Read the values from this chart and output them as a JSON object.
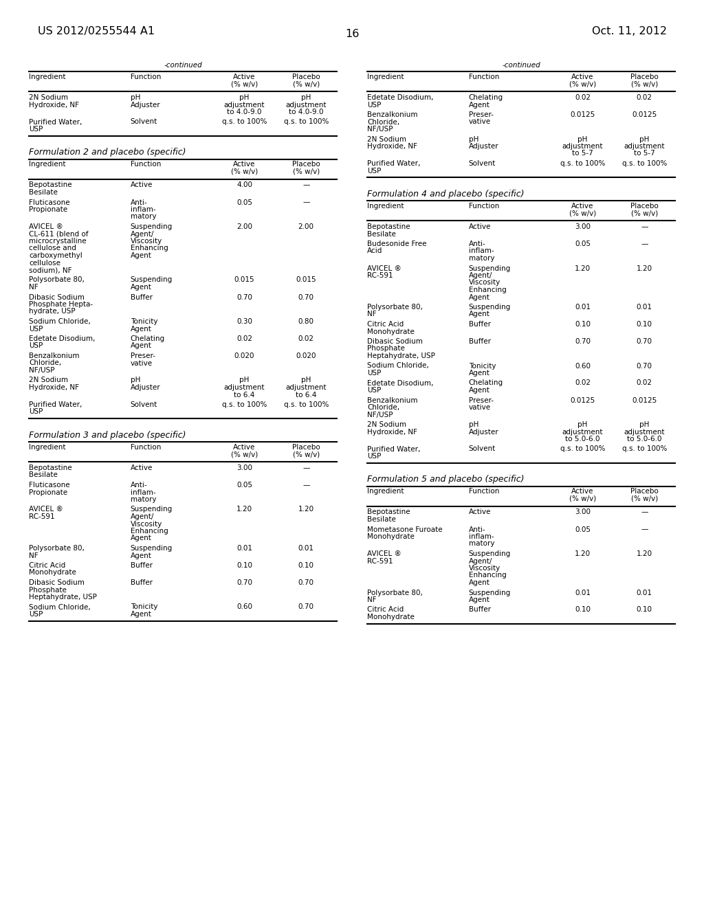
{
  "bg_color": "#ffffff",
  "header_left": "US 2012/0255544 A1",
  "header_right": "Oct. 11, 2012",
  "page_number": "16",
  "left_cont_rows": [
    [
      "2N Sodium\nHydroxide, NF",
      "pH\nAdjuster",
      "pH\nadjustment\nto 4.0-9.0",
      "pH\nadjustment\nto 4.0-9.0"
    ],
    [
      "Purified Water,\nUSP",
      "Solvent",
      "q.s. to 100%",
      "q.s. to 100%"
    ]
  ],
  "form2_rows": [
    [
      "Bepotastine\nBesilate",
      "Active",
      "4.00",
      "—"
    ],
    [
      "Fluticasone\nPropionate",
      "Anti-\ninflam-\nmatory",
      "0.05",
      "—"
    ],
    [
      "AVICEL ®\nCL-611 (blend of\nmicrocrystalline\ncellulose and\ncarboxymethyl\ncellulose\nsodium), NF",
      "Suspending\nAgent/\nViscosity\nEnhancing\nAgent",
      "2.00",
      "2.00"
    ],
    [
      "Polysorbate 80,\nNF",
      "Suspending\nAgent",
      "0.015",
      "0.015"
    ],
    [
      "Dibasic Sodium\nPhosphate Hepta-\nhydrate, USP",
      "Buffer",
      "0.70",
      "0.70"
    ],
    [
      "Sodium Chloride,\nUSP",
      "Tonicity\nAgent",
      "0.30",
      "0.80"
    ],
    [
      "Edetate Disodium,\nUSP",
      "Chelating\nAgent",
      "0.02",
      "0.02"
    ],
    [
      "Benzalkonium\nChloride,\nNF/USP",
      "Preser-\nvative",
      "0.020",
      "0.020"
    ],
    [
      "2N Sodium\nHydroxide, NF",
      "pH\nAdjuster",
      "pH\nadjustment\nto 6.4",
      "pH\nadjustment\nto 6.4"
    ],
    [
      "Purified Water,\nUSP",
      "Solvent",
      "q.s. to 100%",
      "q.s. to 100%"
    ]
  ],
  "form3_rows": [
    [
      "Bepotastine\nBesilate",
      "Active",
      "3.00",
      "—"
    ],
    [
      "Fluticasone\nPropionate",
      "Anti-\ninflam-\nmatory",
      "0.05",
      "—"
    ],
    [
      "AVICEL ®\nRC-591",
      "Suspending\nAgent/\nViscosity\nEnhancing\nAgent",
      "1.20",
      "1.20"
    ],
    [
      "Polysorbate 80,\nNF",
      "Suspending\nAgent",
      "0.01",
      "0.01"
    ],
    [
      "Citric Acid\nMonohydrate",
      "Buffer",
      "0.10",
      "0.10"
    ],
    [
      "Dibasic Sodium\nPhosphate\nHeptahydrate, USP",
      "Buffer",
      "0.70",
      "0.70"
    ],
    [
      "Sodium Chloride,\nUSP",
      "Tonicity\nAgent",
      "0.60",
      "0.70"
    ]
  ],
  "right_cont_rows": [
    [
      "Edetate Disodium,\nUSP",
      "Chelating\nAgent",
      "0.02",
      "0.02"
    ],
    [
      "Benzalkonium\nChloride,\nNF/USP",
      "Preser-\nvative",
      "0.0125",
      "0.0125"
    ],
    [
      "2N Sodium\nHydroxide, NF",
      "pH\nAdjuster",
      "pH\nadjustment\nto 5-7",
      "pH\nadjustment\nto 5-7"
    ],
    [
      "Purified Water,\nUSP",
      "Solvent",
      "q.s. to 100%",
      "q.s. to 100%"
    ]
  ],
  "form4_rows": [
    [
      "Bepotastine\nBesilate",
      "Active",
      "3.00",
      "—"
    ],
    [
      "Budesonide Free\nAcid",
      "Anti-\ninflam-\nmatory",
      "0.05",
      "—"
    ],
    [
      "AVICEL ®\nRC-591",
      "Suspending\nAgent/\nViscosity\nEnhancing\nAgent",
      "1.20",
      "1.20"
    ],
    [
      "Polysorbate 80,\nNF",
      "Suspending\nAgent",
      "0.01",
      "0.01"
    ],
    [
      "Citric Acid\nMonohydrate",
      "Buffer",
      "0.10",
      "0.10"
    ],
    [
      "Dibasic Sodium\nPhosphate\nHeptahydrate, USP",
      "Buffer",
      "0.70",
      "0.70"
    ],
    [
      "Sodium Chloride,\nUSP",
      "Tonicity\nAgent",
      "0.60",
      "0.70"
    ],
    [
      "Edetate Disodium,\nUSP",
      "Chelating\nAgent",
      "0.02",
      "0.02"
    ],
    [
      "Benzalkonium\nChloride,\nNF/USP",
      "Preser-\nvative",
      "0.0125",
      "0.0125"
    ],
    [
      "2N Sodium\nHydroxide, NF",
      "pH\nAdjuster",
      "pH\nadjustment\nto 5.0-6.0",
      "pH\nadjustment\nto 5.0-6.0"
    ],
    [
      "Purified Water,\nUSP",
      "Solvent",
      "q.s. to 100%",
      "q.s. to 100%"
    ]
  ],
  "form5_rows": [
    [
      "Bepotastine\nBesilate",
      "Active",
      "3.00",
      "—"
    ],
    [
      "Mometasone Furoate\nMonohydrate",
      "Anti-\ninflam-\nmatory",
      "0.05",
      "—"
    ],
    [
      "AVICEL ®\nRC-591",
      "Suspending\nAgent/\nViscosity\nEnhancing\nAgent",
      "1.20",
      "1.20"
    ],
    [
      "Polysorbate 80,\nNF",
      "Suspending\nAgent",
      "0.01",
      "0.01"
    ],
    [
      "Citric Acid\nMonohydrate",
      "Buffer",
      "0.10",
      "0.10"
    ]
  ],
  "headers": [
    "Ingredient",
    "Function",
    "Active\n(% w/v)",
    "Placebo\n(% w/v)"
  ]
}
